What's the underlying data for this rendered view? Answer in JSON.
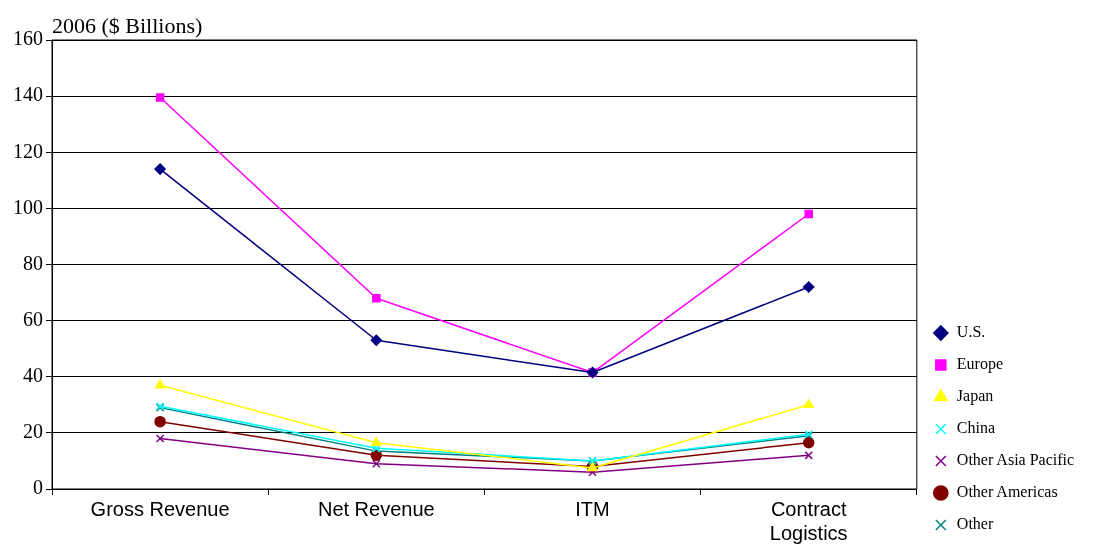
{
  "chart_data": {
    "type": "line",
    "title": "2006 ($ Billions)",
    "categories": [
      "Gross Revenue",
      "Net Revenue",
      "ITM",
      "Contract Logistics"
    ],
    "series": [
      {
        "name": "U.S.",
        "color": "#000080",
        "marker": "diamond",
        "values": [
          114,
          53,
          41.5,
          72
        ]
      },
      {
        "name": "Europe",
        "color": "#ff00ff",
        "marker": "square",
        "values": [
          139.5,
          68,
          41.5,
          98
        ]
      },
      {
        "name": "Japan",
        "color": "#ffff00",
        "marker": "triangle",
        "values": [
          37,
          16.5,
          7.5,
          30
        ]
      },
      {
        "name": "China",
        "color": "#00ffff",
        "marker": "cross",
        "values": [
          29.5,
          14.5,
          10,
          19.5
        ]
      },
      {
        "name": "Other Asia Pacific",
        "color": "#800080",
        "marker": "cross",
        "values": [
          18,
          9,
          6,
          12
        ]
      },
      {
        "name": "Other Americas",
        "color": "#800000",
        "marker": "circle",
        "values": [
          24,
          12,
          8,
          16.5
        ]
      },
      {
        "name": "Other",
        "color": "#008080",
        "marker": "cross",
        "values": [
          29,
          13.5,
          10,
          19
        ]
      }
    ],
    "ylim": [
      0,
      160
    ],
    "yticks": [
      0,
      20,
      40,
      60,
      80,
      100,
      120,
      140,
      160
    ],
    "grid": "y",
    "legend": "right",
    "line_style": "solid"
  }
}
